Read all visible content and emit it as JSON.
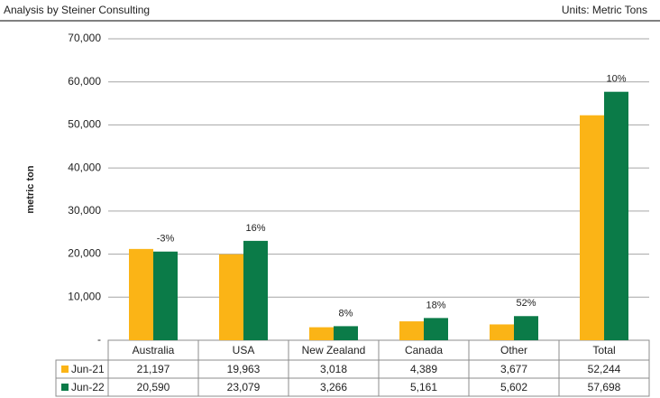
{
  "chart_data": {
    "type": "bar",
    "header_left": "Analysis by Steiner Consulting",
    "header_right": "Units: Metric Tons",
    "y_label": "metric ton",
    "categories": [
      "Australia",
      "USA",
      "New Zealand",
      "Canada",
      "Other",
      "Total"
    ],
    "series": [
      {
        "name": "Jun-21",
        "color": "#fbb416",
        "values": [
          21197,
          19963,
          3018,
          4389,
          3677,
          52244
        ],
        "value_labels": [
          "21,197",
          "19,963",
          "3,018",
          "4,389",
          "3,677",
          "52,244"
        ]
      },
      {
        "name": "Jun-22",
        "color": "#0b7b48",
        "values": [
          20590,
          23079,
          3266,
          5161,
          5602,
          57698
        ],
        "value_labels": [
          "20,590",
          "23,079",
          "3,266",
          "5,161",
          "5,602",
          "57,698"
        ]
      }
    ],
    "change_labels": [
      "-3%",
      "16%",
      "8%",
      "18%",
      "52%",
      "10%"
    ],
    "ylim": [
      0,
      70000
    ],
    "yticks": [
      {
        "value": 0,
        "label": "-"
      },
      {
        "value": 10000,
        "label": "10,000"
      },
      {
        "value": 20000,
        "label": "20,000"
      },
      {
        "value": 30000,
        "label": "30,000"
      },
      {
        "value": 40000,
        "label": "40,000"
      },
      {
        "value": 50000,
        "label": "50,000"
      },
      {
        "value": 60000,
        "label": "60,000"
      },
      {
        "value": 70000,
        "label": "70,000"
      }
    ],
    "grid": true
  }
}
